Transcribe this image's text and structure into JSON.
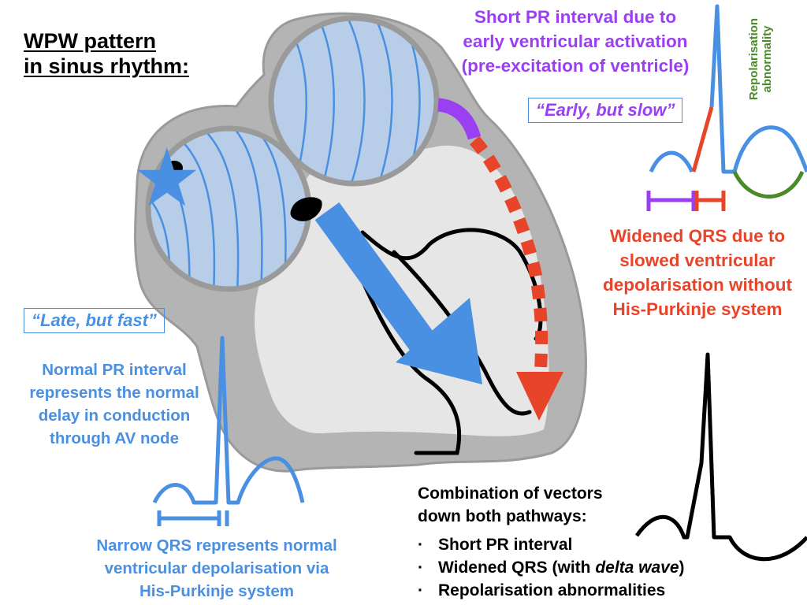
{
  "title": "WPW pattern in sinus rhythm:",
  "title_lines": [
    "WPW pattern",
    "in sinus rhythm:"
  ],
  "labels": {
    "late_fast": "“Late, but fast”",
    "early_slow": "“Early, but slow”",
    "short_pr_lines": [
      "Short PR interval due to",
      "early ventricular activation",
      "(pre-excitation of ventricle)"
    ],
    "repol_lines": [
      "Repolarisation",
      "abnormality"
    ],
    "widened_qrs_lines": [
      "Widened QRS due to",
      "slowed ventricular",
      "depolarisation without",
      "His-Purkinje system"
    ],
    "normal_pr_lines": [
      "Normal PR interval",
      "represents the normal",
      "delay in conduction",
      "through AV node"
    ],
    "narrow_qrs_lines": [
      "Narrow QRS represents normal",
      "ventricular depolarisation via",
      "His-Purkinje system"
    ],
    "combo_lines": [
      "Combination of vectors",
      "down both pathways:"
    ],
    "combo_items": [
      "Short PR interval",
      "Widened QRS (with ",
      "delta wave",
      ")",
      "Repolarisation abnormalities"
    ]
  },
  "colors": {
    "blue": "#4a90e2",
    "red": "#e8442a",
    "purple": "#9b3ff2",
    "green": "#4a8a2a",
    "heart_outer": "#b4b4b4",
    "heart_inner": "#e6e6e6",
    "atrium_fill": "#b8cde8"
  },
  "icons": [
    "sa-node-star-icon",
    "av-node-icon",
    "conduction-arrow-icon",
    "accessory-pathway-icon"
  ]
}
